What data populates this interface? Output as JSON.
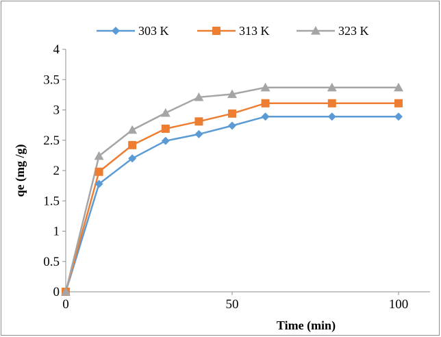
{
  "chart_data": {
    "type": "line",
    "title": "",
    "xlabel": "Time (min)",
    "ylabel": "qe (mg /g)",
    "xlim": [
      0,
      100
    ],
    "ylim": [
      0,
      4
    ],
    "x_ticks": [
      0,
      50,
      100
    ],
    "x_tick_labels": [
      "0",
      "50",
      "100"
    ],
    "y_ticks": [
      0,
      0.5,
      1,
      1.5,
      2,
      2.5,
      3,
      3.5,
      4
    ],
    "y_tick_labels": [
      "0",
      "0.5",
      "1",
      "1.5",
      "2",
      "2.5",
      "3",
      "3.5",
      "4"
    ],
    "grid": false,
    "legend_position": "top",
    "x": [
      0,
      10,
      20,
      30,
      40,
      50,
      60,
      80,
      100
    ],
    "series": [
      {
        "name": "303 K",
        "color": "#5b9bd5",
        "marker": "diamond",
        "values": [
          0,
          1.78,
          2.2,
          2.49,
          2.6,
          2.74,
          2.89,
          2.89,
          2.89
        ]
      },
      {
        "name": "313 K",
        "color": "#ed7d31",
        "marker": "square",
        "values": [
          0,
          1.98,
          2.42,
          2.69,
          2.81,
          2.94,
          3.11,
          3.11,
          3.11
        ]
      },
      {
        "name": "323 K",
        "color": "#a5a5a5",
        "marker": "triangle",
        "values": [
          0,
          2.24,
          2.67,
          2.95,
          3.21,
          3.26,
          3.37,
          3.37,
          3.37
        ]
      }
    ]
  }
}
